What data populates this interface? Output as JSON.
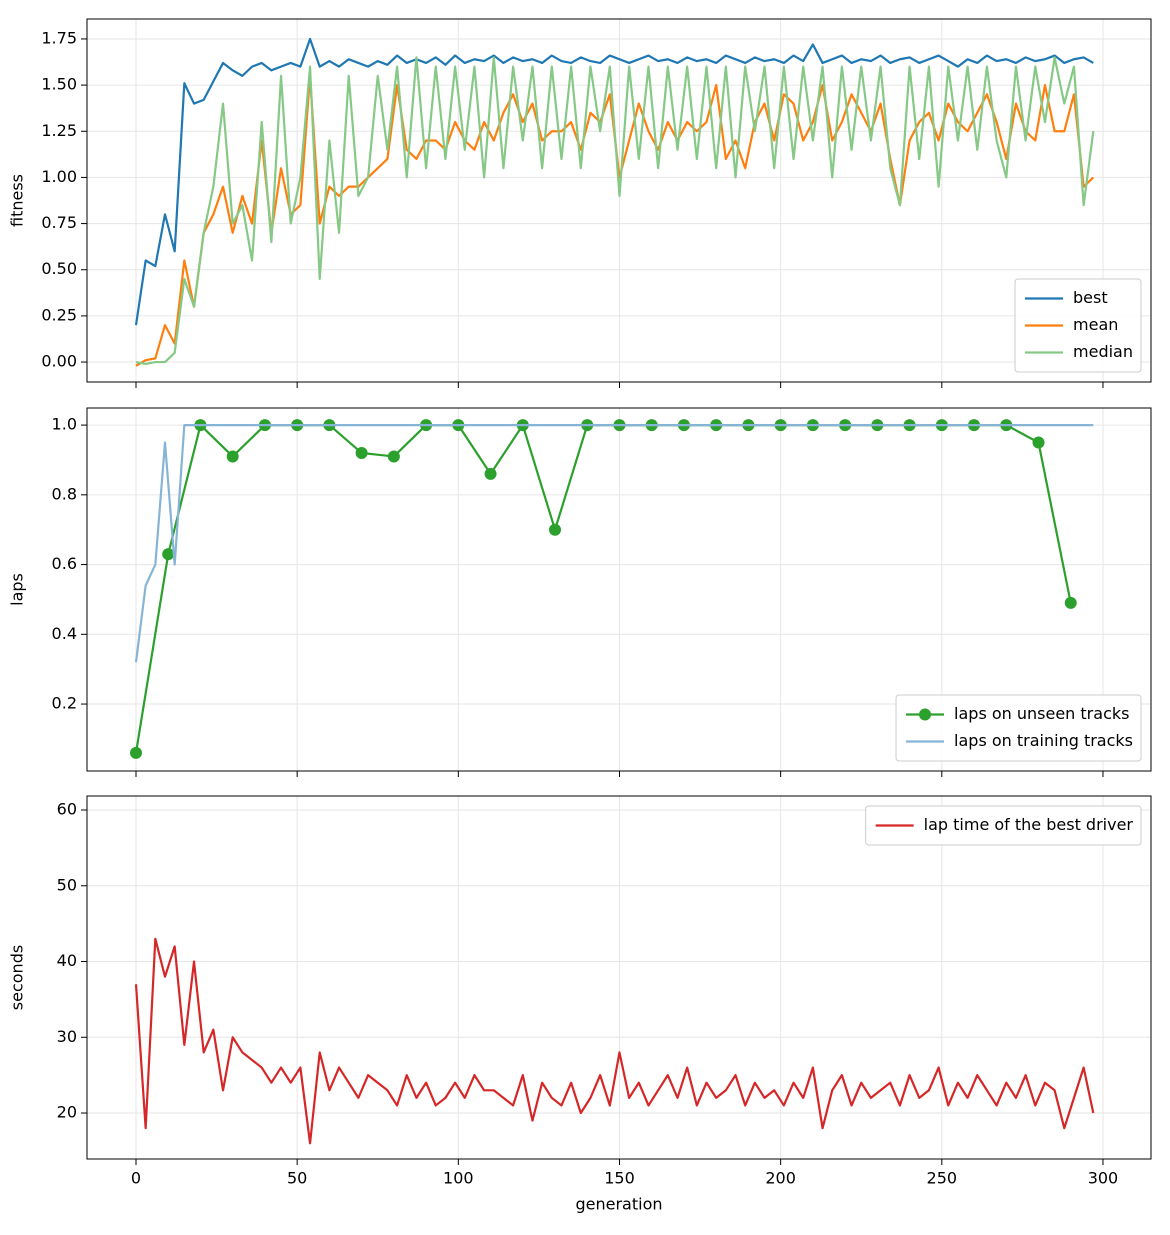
{
  "chart_data": [
    {
      "type": "line",
      "ylabel": "fitness",
      "xlim": [
        -15.2,
        314.9
      ],
      "ylim": [
        -0.108,
        1.858
      ],
      "xticks": [
        0,
        50,
        100,
        150,
        200,
        250,
        300
      ],
      "yticks": [
        {
          "value": 0,
          "label": "0.00"
        },
        {
          "value": 0.25,
          "label": "0.25"
        },
        {
          "value": 0.5,
          "label": "0.50"
        },
        {
          "value": 0.75,
          "label": "0.75"
        },
        {
          "value": 1,
          "label": "1.00"
        },
        {
          "value": 1.25,
          "label": "1.25"
        },
        {
          "value": 1.5,
          "label": "1.50"
        },
        {
          "value": 1.75,
          "label": "1.75"
        }
      ],
      "grid": true,
      "legend": "lower right",
      "x": [
        0,
        3,
        6,
        9,
        12,
        15,
        18,
        21,
        24,
        27,
        30,
        33,
        36,
        39,
        42,
        45,
        48,
        51,
        54,
        57,
        60,
        63,
        66,
        69,
        72,
        75,
        78,
        81,
        84,
        87,
        90,
        93,
        96,
        99,
        102,
        105,
        108,
        111,
        114,
        117,
        120,
        123,
        126,
        129,
        132,
        135,
        138,
        141,
        144,
        147,
        150,
        153,
        156,
        159,
        162,
        165,
        168,
        171,
        174,
        177,
        180,
        183,
        186,
        189,
        192,
        195,
        198,
        201,
        204,
        207,
        210,
        213,
        216,
        219,
        222,
        225,
        228,
        231,
        234,
        237,
        240,
        243,
        246,
        249,
        252,
        255,
        258,
        261,
        264,
        267,
        270,
        273,
        276,
        279,
        282,
        285,
        288,
        291,
        294,
        297
      ],
      "series": [
        {
          "name": "best",
          "color": "#1f77b4",
          "values": [
            0.2,
            0.55,
            0.52,
            0.8,
            0.6,
            1.51,
            1.4,
            1.42,
            1.52,
            1.62,
            1.58,
            1.55,
            1.6,
            1.62,
            1.58,
            1.6,
            1.62,
            1.6,
            1.75,
            1.6,
            1.63,
            1.6,
            1.64,
            1.62,
            1.6,
            1.63,
            1.61,
            1.66,
            1.62,
            1.64,
            1.62,
            1.65,
            1.61,
            1.66,
            1.62,
            1.64,
            1.63,
            1.66,
            1.62,
            1.65,
            1.63,
            1.64,
            1.62,
            1.66,
            1.63,
            1.62,
            1.65,
            1.63,
            1.62,
            1.66,
            1.64,
            1.62,
            1.64,
            1.66,
            1.63,
            1.64,
            1.62,
            1.65,
            1.63,
            1.64,
            1.62,
            1.66,
            1.64,
            1.62,
            1.65,
            1.63,
            1.64,
            1.62,
            1.66,
            1.63,
            1.72,
            1.62,
            1.64,
            1.66,
            1.62,
            1.64,
            1.63,
            1.66,
            1.62,
            1.64,
            1.65,
            1.62,
            1.64,
            1.66,
            1.63,
            1.6,
            1.64,
            1.62,
            1.66,
            1.63,
            1.64,
            1.62,
            1.65,
            1.63,
            1.64,
            1.66,
            1.62,
            1.64,
            1.65,
            1.62
          ]
        },
        {
          "name": "mean",
          "color": "#ff7f0e",
          "values": [
            -0.02,
            0.01,
            0.02,
            0.2,
            0.1,
            0.55,
            0.3,
            0.7,
            0.8,
            0.95,
            0.7,
            0.9,
            0.75,
            1.2,
            0.7,
            1.05,
            0.8,
            0.85,
            1.55,
            0.75,
            0.95,
            0.9,
            0.95,
            0.95,
            1.0,
            1.05,
            1.1,
            1.5,
            1.15,
            1.1,
            1.2,
            1.2,
            1.15,
            1.3,
            1.2,
            1.15,
            1.3,
            1.2,
            1.35,
            1.45,
            1.3,
            1.4,
            1.2,
            1.25,
            1.25,
            1.3,
            1.15,
            1.35,
            1.3,
            1.45,
            1.0,
            1.2,
            1.4,
            1.25,
            1.15,
            1.3,
            1.2,
            1.3,
            1.25,
            1.3,
            1.5,
            1.1,
            1.2,
            1.05,
            1.3,
            1.4,
            1.2,
            1.45,
            1.4,
            1.2,
            1.3,
            1.5,
            1.2,
            1.3,
            1.45,
            1.35,
            1.25,
            1.4,
            1.1,
            0.85,
            1.2,
            1.3,
            1.35,
            1.2,
            1.4,
            1.3,
            1.25,
            1.35,
            1.45,
            1.3,
            1.1,
            1.4,
            1.25,
            1.2,
            1.5,
            1.25,
            1.25,
            1.45,
            0.95,
            1.0
          ]
        },
        {
          "name": "median",
          "color": "#86c986",
          "values": [
            0,
            -0.01,
            0,
            0,
            0.05,
            0.45,
            0.3,
            0.7,
            0.95,
            1.4,
            0.75,
            0.85,
            0.55,
            1.3,
            0.65,
            1.55,
            0.75,
            1.0,
            1.6,
            0.45,
            1.2,
            0.7,
            1.55,
            0.9,
            1.0,
            1.55,
            1.15,
            1.6,
            1.0,
            1.65,
            1.05,
            1.6,
            1.1,
            1.6,
            1.15,
            1.6,
            1.0,
            1.65,
            1.05,
            1.6,
            1.2,
            1.6,
            1.05,
            1.6,
            1.1,
            1.6,
            1.05,
            1.6,
            1.25,
            1.6,
            0.9,
            1.6,
            1.1,
            1.6,
            1.05,
            1.6,
            1.15,
            1.6,
            1.1,
            1.6,
            1.05,
            1.6,
            1.0,
            1.6,
            1.25,
            1.6,
            1.05,
            1.6,
            1.1,
            1.6,
            1.2,
            1.6,
            1.0,
            1.6,
            1.15,
            1.6,
            1.2,
            1.6,
            1.05,
            0.85,
            1.6,
            1.1,
            1.6,
            0.95,
            1.6,
            1.2,
            1.6,
            1.15,
            1.6,
            1.2,
            1.0,
            1.6,
            1.2,
            1.6,
            1.3,
            1.65,
            1.4,
            1.6,
            0.85,
            1.25
          ]
        }
      ]
    },
    {
      "type": "line",
      "ylabel": "laps",
      "xlim": [
        -15.2,
        314.9
      ],
      "ylim": [
        0.008,
        1.049
      ],
      "xticks": [
        0,
        50,
        100,
        150,
        200,
        250,
        300
      ],
      "yticks": [
        0.2,
        0.4,
        0.6,
        0.8,
        {
          "value": 1,
          "label": "1.0"
        }
      ],
      "grid": true,
      "legend": "lower right",
      "series": [
        {
          "name": "laps on unseen tracks",
          "color": "#2ca02c",
          "marker": "o",
          "x": [
            0,
            10,
            20,
            30,
            40,
            50,
            60,
            70,
            80,
            90,
            100,
            110,
            120,
            130,
            140,
            150,
            160,
            170,
            180,
            190,
            200,
            210,
            220,
            230,
            240,
            250,
            260,
            270,
            280,
            290
          ],
          "values": [
            0.06,
            0.63,
            1,
            0.91,
            1,
            1,
            1,
            0.92,
            0.91,
            1,
            1,
            0.86,
            1,
            0.7,
            1,
            1,
            1,
            1,
            1,
            1,
            1,
            1,
            1,
            1,
            1,
            1,
            1,
            1,
            0.95,
            0.49
          ]
        },
        {
          "name": "laps on training tracks",
          "color": "#86b4d6",
          "x": [
            0,
            3,
            6,
            9,
            12,
            15,
            18,
            21,
            24,
            27,
            30,
            33,
            36,
            39,
            42,
            45,
            48,
            51,
            54,
            57,
            60,
            63,
            66,
            69,
            72,
            75,
            78,
            81,
            84,
            87,
            90,
            93,
            96,
            99,
            102,
            105,
            108,
            111,
            114,
            117,
            120,
            123,
            126,
            129,
            132,
            135,
            138,
            141,
            144,
            147,
            150,
            153,
            156,
            159,
            162,
            165,
            168,
            171,
            174,
            177,
            180,
            183,
            186,
            189,
            192,
            195,
            198,
            201,
            204,
            207,
            210,
            213,
            216,
            219,
            222,
            225,
            228,
            231,
            234,
            237,
            240,
            243,
            246,
            249,
            252,
            255,
            258,
            261,
            264,
            267,
            270,
            273,
            276,
            279,
            282,
            285,
            288,
            291,
            294,
            297
          ],
          "values": [
            0.32,
            0.54,
            0.6,
            0.95,
            0.6,
            1,
            1,
            1,
            1,
            1,
            1,
            1,
            1,
            1,
            1,
            1,
            1,
            1,
            1,
            1,
            1,
            1,
            1,
            1,
            1,
            1,
            1,
            1,
            1,
            1,
            1,
            1,
            1,
            1,
            1,
            1,
            1,
            1,
            1,
            1,
            1,
            1,
            1,
            1,
            1,
            1,
            1,
            1,
            1,
            1,
            1,
            1,
            1,
            1,
            1,
            1,
            1,
            1,
            1,
            1,
            1,
            1,
            1,
            1,
            1,
            1,
            1,
            1,
            1,
            1,
            1,
            1,
            1,
            1,
            1,
            1,
            1,
            1,
            1,
            1,
            1,
            1,
            1,
            1,
            1,
            1,
            1,
            1,
            1,
            1,
            1,
            1,
            1,
            1,
            1,
            1,
            1,
            1,
            1,
            1
          ]
        }
      ]
    },
    {
      "type": "line",
      "ylabel": "seconds",
      "xlabel": "generation",
      "xlim": [
        -15.2,
        314.9
      ],
      "ylim": [
        13.93,
        61.85
      ],
      "xticks": [
        0,
        50,
        100,
        150,
        200,
        250,
        300
      ],
      "yticks": [
        20,
        30,
        40,
        50,
        60
      ],
      "grid": true,
      "legend": "upper right",
      "x": [
        0,
        3,
        6,
        9,
        12,
        15,
        18,
        21,
        24,
        27,
        30,
        33,
        36,
        39,
        42,
        45,
        48,
        51,
        54,
        57,
        60,
        63,
        66,
        69,
        72,
        75,
        78,
        81,
        84,
        87,
        90,
        93,
        96,
        99,
        102,
        105,
        108,
        111,
        114,
        117,
        120,
        123,
        126,
        129,
        132,
        135,
        138,
        141,
        144,
        147,
        150,
        153,
        156,
        159,
        162,
        165,
        168,
        171,
        174,
        177,
        180,
        183,
        186,
        189,
        192,
        195,
        198,
        201,
        204,
        207,
        210,
        213,
        216,
        219,
        222,
        225,
        228,
        231,
        234,
        237,
        240,
        243,
        246,
        249,
        252,
        255,
        258,
        261,
        264,
        267,
        270,
        273,
        276,
        279,
        282,
        285,
        288,
        291,
        294,
        297
      ],
      "series": [
        {
          "name": "lap time of the best driver",
          "color": "#d62728",
          "values": [
            37,
            18,
            43,
            38,
            42,
            29,
            40,
            28,
            31,
            23,
            30,
            28,
            27,
            26,
            24,
            26,
            24,
            26,
            16,
            28,
            23,
            26,
            24,
            22,
            25,
            24,
            23,
            21,
            25,
            22,
            24,
            21,
            22,
            24,
            22,
            25,
            23,
            23,
            22,
            21,
            25,
            19,
            24,
            22,
            21,
            24,
            20,
            22,
            25,
            21,
            28,
            22,
            24,
            21,
            23,
            25,
            22,
            26,
            21,
            24,
            22,
            23,
            25,
            21,
            24,
            22,
            23,
            21,
            24,
            22,
            26,
            18,
            23,
            25,
            21,
            24,
            22,
            23,
            24,
            21,
            25,
            22,
            23,
            26,
            21,
            24,
            22,
            25,
            23,
            21,
            24,
            22,
            25,
            21,
            24,
            23,
            18,
            22,
            26,
            20
          ]
        }
      ]
    }
  ]
}
